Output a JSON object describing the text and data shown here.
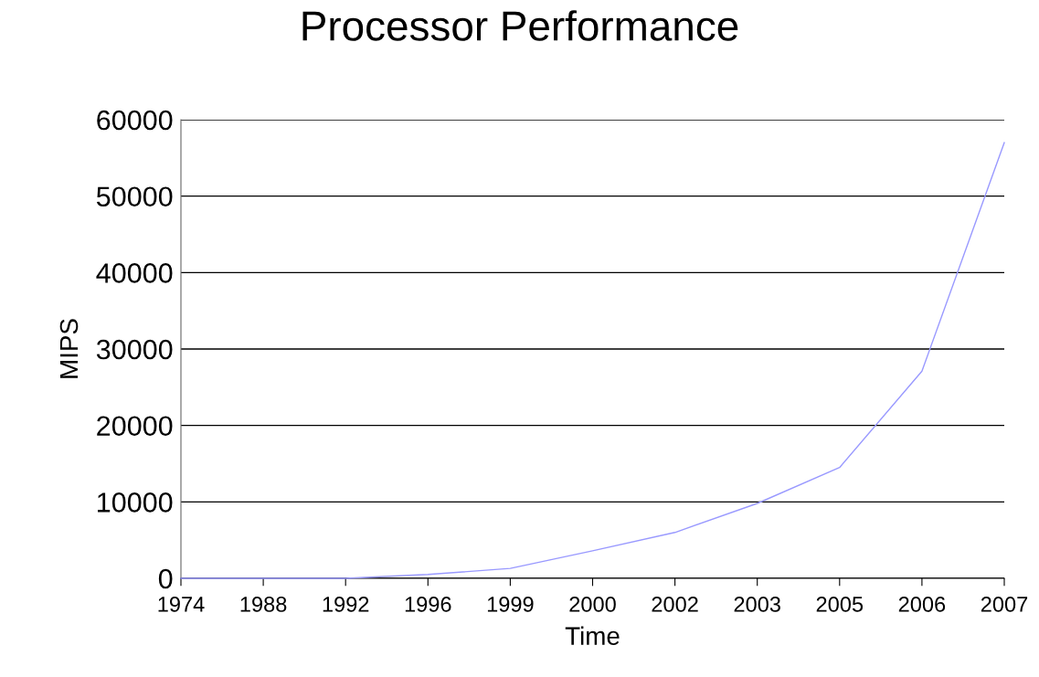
{
  "chart_data": {
    "type": "line",
    "title": "Processor Performance",
    "xlabel": "Time",
    "ylabel": "MIPS",
    "categories": [
      "1974",
      "1988",
      "1992",
      "1996",
      "1999",
      "2000",
      "2002",
      "2003",
      "2005",
      "2006",
      "2007"
    ],
    "series": [
      {
        "color": "#9999ff",
        "values": [
          0,
          0,
          0,
          500,
          1300,
          3600,
          6000,
          9800,
          14500,
          27100,
          57000
        ]
      }
    ],
    "ylim": [
      0,
      60000
    ],
    "yticks": [
      0,
      10000,
      20000,
      30000,
      40000,
      50000,
      60000
    ],
    "grid": "y",
    "legend": false,
    "marker": "none",
    "line_style": "solid"
  }
}
